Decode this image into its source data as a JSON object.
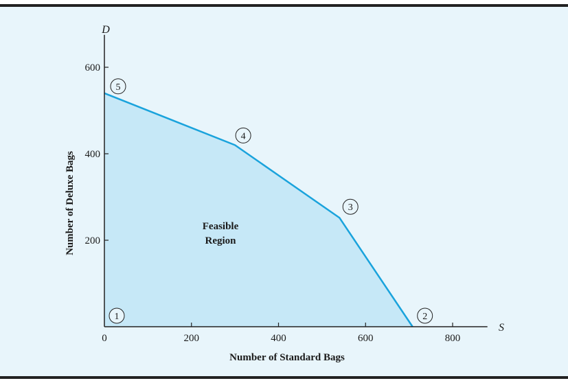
{
  "colors": {
    "background": "#e8f5fb",
    "frame": "#222222",
    "region_fill": "#c6e8f7",
    "boundary": "#1aa3dc",
    "axis": "#222222"
  },
  "chart_data": {
    "type": "area",
    "x_var": "S",
    "y_var": "D",
    "xlabel": "Number of Standard Bags",
    "ylabel": "Number of Deluxe Bags",
    "xlim": [
      0,
      880
    ],
    "ylim": [
      0,
      675
    ],
    "x_ticks": [
      0,
      200,
      400,
      600,
      800
    ],
    "y_ticks": [
      200,
      400,
      600
    ],
    "grid": false,
    "region_label": [
      "Feasible",
      "Region"
    ],
    "vertices": [
      {
        "label": "1",
        "x": 0,
        "y": 0
      },
      {
        "label": "2",
        "x": 708,
        "y": 0
      },
      {
        "label": "3",
        "x": 540,
        "y": 252
      },
      {
        "label": "4",
        "x": 300,
        "y": 420
      },
      {
        "label": "5",
        "x": 0,
        "y": 540
      }
    ]
  }
}
